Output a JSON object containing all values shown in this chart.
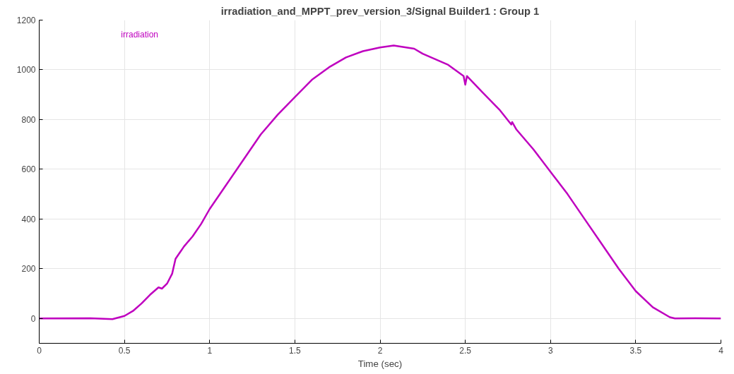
{
  "chart_data": {
    "type": "line",
    "title": "irradiation_and_MPPT_prev_version_3/Signal Builder1 : Group 1",
    "xlabel": "Time (sec)",
    "series": [
      {
        "name": "irradiation",
        "color": "#bf00bf",
        "x": [
          0,
          0.3,
          0.43,
          0.5,
          0.55,
          0.6,
          0.65,
          0.7,
          0.72,
          0.75,
          0.78,
          0.8,
          0.85,
          0.9,
          0.95,
          1.0,
          1.1,
          1.2,
          1.3,
          1.4,
          1.5,
          1.6,
          1.7,
          1.8,
          1.9,
          2.0,
          2.08,
          2.2,
          2.25,
          2.3,
          2.4,
          2.49,
          2.5,
          2.51,
          2.6,
          2.7,
          2.77,
          2.775,
          2.8,
          2.9,
          3.0,
          3.1,
          3.2,
          3.3,
          3.4,
          3.5,
          3.6,
          3.7,
          3.73,
          3.85,
          4.0
        ],
        "values": [
          0,
          1,
          -3,
          10,
          30,
          60,
          95,
          125,
          120,
          140,
          180,
          240,
          290,
          330,
          380,
          440,
          540,
          640,
          740,
          820,
          890,
          960,
          1010,
          1050,
          1075,
          1090,
          1098,
          1085,
          1065,
          1050,
          1020,
          975,
          940,
          975,
          910,
          840,
          780,
          790,
          760,
          680,
          590,
          500,
          400,
          300,
          200,
          110,
          45,
          5,
          0,
          1,
          0
        ]
      }
    ],
    "xlim": [
      0,
      4
    ],
    "ylim": [
      -100,
      1200
    ],
    "xticks": [
      0,
      0.5,
      1,
      1.5,
      2,
      2.5,
      3,
      3.5,
      4
    ],
    "yticks": [
      0,
      200,
      400,
      600,
      800,
      1000,
      1200
    ],
    "grid": true,
    "legend": "top left",
    "line_style": "solid",
    "marker": "none"
  }
}
